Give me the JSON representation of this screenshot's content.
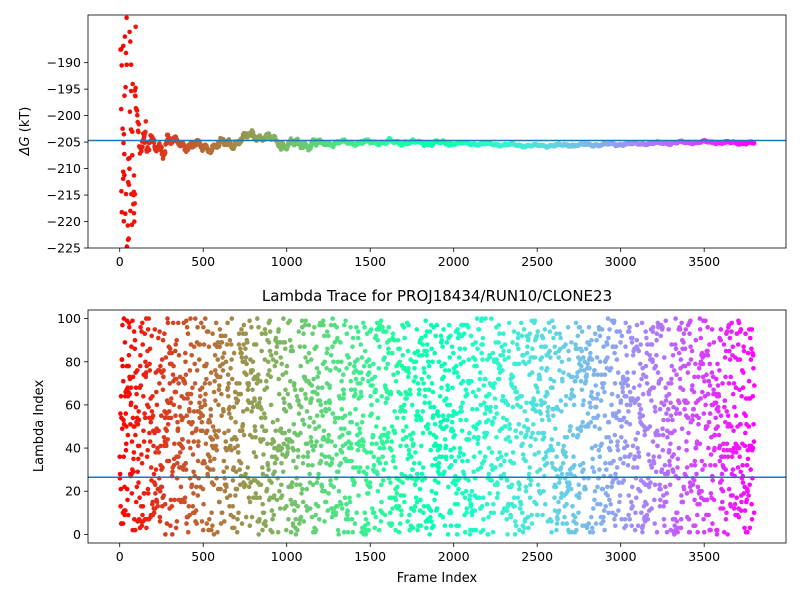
{
  "chart_data": [
    {
      "type": "scatter",
      "title": "",
      "xlabel": "",
      "ylabel_main": "ΔG",
      "ylabel_unit": " (kT)",
      "xlim": [
        -190,
        3990
      ],
      "ylim": [
        -225,
        -181
      ],
      "xticks": [
        0,
        500,
        1000,
        1500,
        2000,
        2500,
        3000,
        3500
      ],
      "yticks": [
        -190,
        -195,
        -200,
        -205,
        -210,
        -215,
        -220,
        -225
      ],
      "hline": -204.7,
      "hline_color": "#1f77b4",
      "colormap": "rainbow",
      "series": [
        {
          "x_range": [
            0,
            3800
          ],
          "profile": "free energy estimate converging from a wide spread near frame 0 to about -205 kT; slight dip to about -205.5 between frames 2400 and 2900",
          "anchor_points": [
            [
              10,
              -190
            ],
            [
              20,
              -200
            ],
            [
              30,
              -210
            ],
            [
              40,
              -220
            ],
            [
              50,
              -225
            ],
            [
              60,
              -181
            ],
            [
              100,
              -198
            ],
            [
              150,
              -207
            ],
            [
              200,
              -206
            ],
            [
              300,
              -205
            ],
            [
              500,
              -206
            ],
            [
              700,
              -205
            ],
            [
              800,
              -203.5
            ],
            [
              1000,
              -205.5
            ],
            [
              1500,
              -205
            ],
            [
              2000,
              -205.2
            ],
            [
              2500,
              -205.7
            ],
            [
              3000,
              -205.4
            ],
            [
              3500,
              -205
            ],
            [
              3800,
              -205.2
            ]
          ]
        }
      ]
    },
    {
      "type": "scatter",
      "title": "Lambda Trace for PROJ18434/RUN10/CLONE23",
      "xlabel": "Frame Index",
      "ylabel": "Lambda Index",
      "xlim": [
        -190,
        3990
      ],
      "ylim": [
        -4,
        104
      ],
      "xticks": [
        0,
        500,
        1000,
        1500,
        2000,
        2500,
        3000,
        3500
      ],
      "yticks": [
        0,
        20,
        40,
        60,
        80,
        100
      ],
      "hline": 26.5,
      "hline_color": "#1f77b4",
      "colormap": "rainbow",
      "series": [
        {
          "x_range": [
            0,
            3800
          ],
          "y_range": [
            0,
            100
          ],
          "profile": "lambda index values scattered uniformly between 0 and 100 across all frames"
        }
      ]
    }
  ]
}
